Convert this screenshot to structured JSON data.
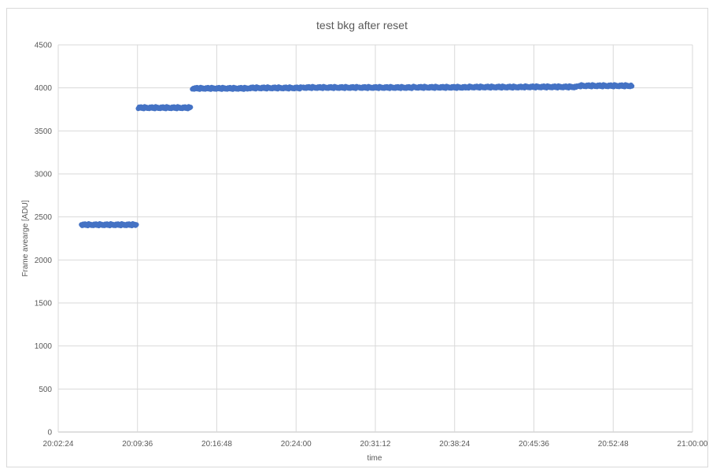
{
  "chart_data": {
    "type": "scatter",
    "title": "test bkg after reset",
    "xlabel": "time",
    "ylabel": "Frame avearge  [ADU]",
    "ylim": [
      0,
      4500
    ],
    "yticks": [
      0,
      500,
      1000,
      1500,
      2000,
      2500,
      3000,
      3500,
      4000,
      4500
    ],
    "xlim": [
      "20:02:24",
      "21:00:00"
    ],
    "xticks": [
      "20:02:24",
      "20:09:36",
      "20:16:48",
      "20:24:00",
      "20:31:12",
      "20:38:24",
      "20:45:36",
      "20:52:48",
      "21:00:00"
    ],
    "grid": true,
    "marker_color": "#4472c4",
    "segments": [
      {
        "start": "20:04:30",
        "end": "20:09:30",
        "value": 2410
      },
      {
        "start": "20:09:40",
        "end": "20:14:25",
        "value": 3770
      },
      {
        "start": "20:14:35",
        "end": "20:19:35",
        "value": 3995
      },
      {
        "start": "20:19:45",
        "end": "20:24:25",
        "value": 4000
      },
      {
        "start": "20:24:35",
        "end": "20:29:30",
        "value": 4005
      },
      {
        "start": "20:29:40",
        "end": "20:34:30",
        "value": 4005
      },
      {
        "start": "20:34:40",
        "end": "20:39:30",
        "value": 4007
      },
      {
        "start": "20:39:40",
        "end": "20:44:30",
        "value": 4010
      },
      {
        "start": "20:44:40",
        "end": "20:49:30",
        "value": 4012
      },
      {
        "start": "20:49:40",
        "end": "20:54:30",
        "value": 4025
      }
    ]
  }
}
